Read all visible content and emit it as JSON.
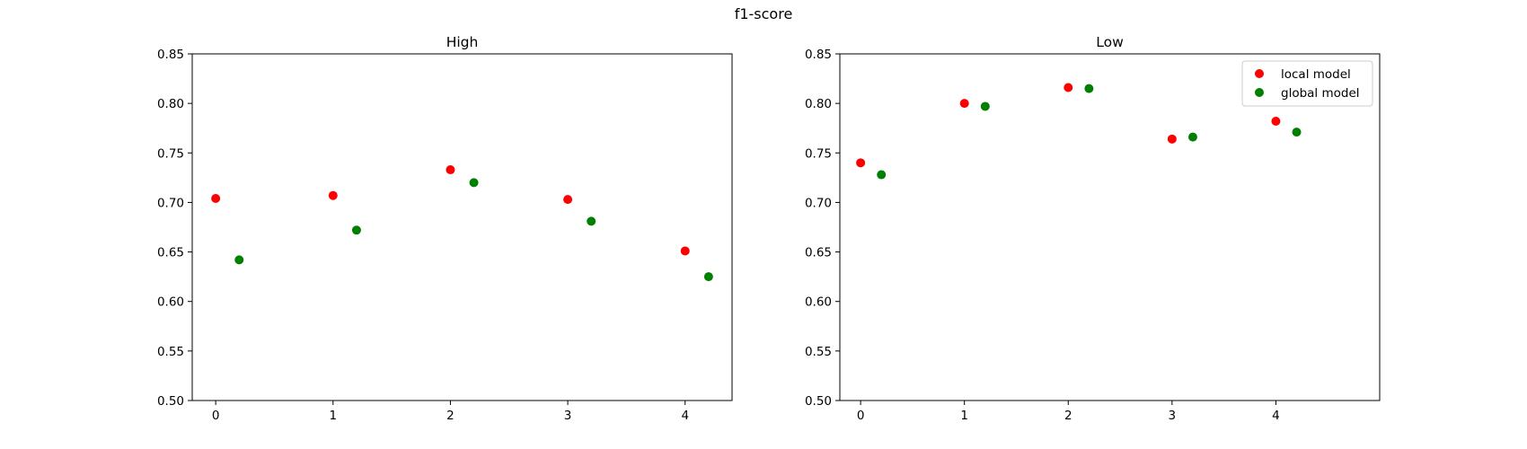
{
  "figure": {
    "title": "f1-score"
  },
  "chart_data": [
    {
      "type": "scatter",
      "title": "High",
      "xlabel": "",
      "ylabel": "",
      "xticks": [
        0,
        1,
        2,
        3,
        4
      ],
      "xlim": [
        -0.2,
        4.4
      ],
      "ylim": [
        0.5,
        0.85
      ],
      "yticks": [
        0.5,
        0.55,
        0.6,
        0.65,
        0.7,
        0.75,
        0.8,
        0.85
      ],
      "grid": false,
      "legend": null,
      "series": [
        {
          "name": "local model",
          "color": "#ff0000",
          "x": [
            0,
            1,
            2,
            3,
            4
          ],
          "y": [
            0.704,
            0.707,
            0.733,
            0.703,
            0.651
          ]
        },
        {
          "name": "global model",
          "color": "#008000",
          "x": [
            0.2,
            1.2,
            2.2,
            3.2,
            4.2
          ],
          "y": [
            0.642,
            0.672,
            0.72,
            0.681,
            0.625
          ]
        }
      ]
    },
    {
      "type": "scatter",
      "title": "Low",
      "xlabel": "",
      "ylabel": "",
      "xticks": [
        0,
        1,
        2,
        3,
        4
      ],
      "xlim": [
        -0.2,
        5.0
      ],
      "ylim": [
        0.5,
        0.85
      ],
      "yticks": [
        0.5,
        0.55,
        0.6,
        0.65,
        0.7,
        0.75,
        0.8,
        0.85
      ],
      "grid": false,
      "legend": "top-right",
      "series": [
        {
          "name": "local model",
          "color": "#ff0000",
          "x": [
            0,
            1,
            2,
            3,
            4
          ],
          "y": [
            0.74,
            0.8,
            0.816,
            0.764,
            0.782
          ]
        },
        {
          "name": "global model",
          "color": "#008000",
          "x": [
            0.2,
            1.2,
            2.2,
            3.2,
            4.2
          ],
          "y": [
            0.728,
            0.797,
            0.815,
            0.766,
            0.771
          ]
        }
      ]
    }
  ]
}
